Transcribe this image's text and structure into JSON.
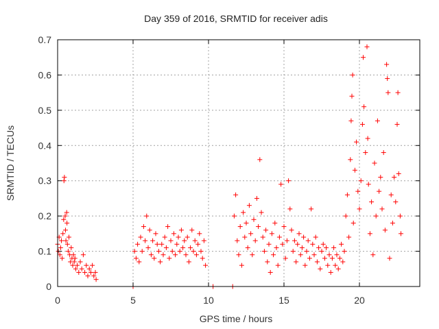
{
  "chart_data": {
    "type": "scatter",
    "title": "Day 359 of 2016, SRMTID for receiver adis",
    "xlabel": "GPS time / hours",
    "ylabel": "SRMTID / TECUs",
    "xlim": [
      0,
      24
    ],
    "ylim": [
      0,
      0.7
    ],
    "xticks": [
      0,
      5,
      10,
      15,
      20
    ],
    "xtick_labels": [
      "0",
      "5",
      "10",
      "15",
      "20"
    ],
    "yticks": [
      0,
      0.1,
      0.2,
      0.3,
      0.4,
      0.5,
      0.6,
      0.7
    ],
    "ytick_labels": [
      "0",
      "0.1",
      "0.2",
      "0.3",
      "0.4",
      "0.5",
      "0.6",
      "0.7"
    ],
    "grid": true,
    "marker": "plus",
    "series": [
      {
        "name": "SRMTID",
        "color": "#ff0000",
        "points": [
          [
            0.0,
            0.12
          ],
          [
            0.05,
            0.1
          ],
          [
            0.1,
            0.14
          ],
          [
            0.15,
            0.09
          ],
          [
            0.2,
            0.11
          ],
          [
            0.25,
            0.13
          ],
          [
            0.3,
            0.08
          ],
          [
            0.35,
            0.15
          ],
          [
            0.4,
            0.19
          ],
          [
            0.42,
            0.3
          ],
          [
            0.45,
            0.31
          ],
          [
            0.5,
            0.2
          ],
          [
            0.52,
            0.16
          ],
          [
            0.55,
            0.13
          ],
          [
            0.6,
            0.21
          ],
          [
            0.62,
            0.18
          ],
          [
            0.65,
            0.12
          ],
          [
            0.7,
            0.1
          ],
          [
            0.75,
            0.14
          ],
          [
            0.8,
            0.09
          ],
          [
            0.85,
            0.07
          ],
          [
            0.9,
            0.11
          ],
          [
            0.95,
            0.08
          ],
          [
            1.0,
            0.06
          ],
          [
            1.05,
            0.09
          ],
          [
            1.1,
            0.07
          ],
          [
            1.15,
            0.08
          ],
          [
            1.2,
            0.05
          ],
          [
            1.3,
            0.06
          ],
          [
            1.4,
            0.04
          ],
          [
            1.5,
            0.07
          ],
          [
            1.6,
            0.05
          ],
          [
            1.7,
            0.09
          ],
          [
            1.8,
            0.04
          ],
          [
            1.9,
            0.06
          ],
          [
            2.0,
            0.03
          ],
          [
            2.1,
            0.05
          ],
          [
            2.2,
            0.04
          ],
          [
            2.3,
            0.06
          ],
          [
            2.4,
            0.03
          ],
          [
            2.5,
            0.04
          ],
          [
            2.55,
            0.02
          ],
          [
            5.0,
            0.0
          ],
          [
            5.1,
            0.1
          ],
          [
            5.2,
            0.08
          ],
          [
            5.3,
            0.12
          ],
          [
            5.4,
            0.07
          ],
          [
            5.5,
            0.14
          ],
          [
            5.6,
            0.1
          ],
          [
            5.7,
            0.17
          ],
          [
            5.8,
            0.13
          ],
          [
            5.9,
            0.2
          ],
          [
            6.0,
            0.11
          ],
          [
            6.1,
            0.16
          ],
          [
            6.2,
            0.09
          ],
          [
            6.3,
            0.13
          ],
          [
            6.4,
            0.08
          ],
          [
            6.5,
            0.15
          ],
          [
            6.6,
            0.12
          ],
          [
            6.7,
            0.1
          ],
          [
            6.8,
            0.07
          ],
          [
            6.9,
            0.12
          ],
          [
            7.0,
            0.09
          ],
          [
            7.1,
            0.14
          ],
          [
            7.2,
            0.11
          ],
          [
            7.3,
            0.17
          ],
          [
            7.4,
            0.08
          ],
          [
            7.5,
            0.13
          ],
          [
            7.6,
            0.1
          ],
          [
            7.7,
            0.15
          ],
          [
            7.8,
            0.09
          ],
          [
            7.9,
            0.12
          ],
          [
            8.0,
            0.14
          ],
          [
            8.1,
            0.1
          ],
          [
            8.2,
            0.16
          ],
          [
            8.3,
            0.11
          ],
          [
            8.4,
            0.13
          ],
          [
            8.5,
            0.09
          ],
          [
            8.6,
            0.14
          ],
          [
            8.7,
            0.07
          ],
          [
            8.8,
            0.11
          ],
          [
            8.9,
            0.16
          ],
          [
            9.0,
            0.1
          ],
          [
            9.1,
            0.13
          ],
          [
            9.2,
            0.09
          ],
          [
            9.3,
            0.12
          ],
          [
            9.4,
            0.15
          ],
          [
            9.5,
            0.1
          ],
          [
            9.6,
            0.08
          ],
          [
            9.7,
            0.13
          ],
          [
            9.8,
            0.06
          ],
          [
            10.3,
            0.0
          ],
          [
            11.6,
            0.0
          ],
          [
            11.7,
            0.2
          ],
          [
            11.8,
            0.26
          ],
          [
            11.9,
            0.13
          ],
          [
            12.0,
            0.09
          ],
          [
            12.1,
            0.17
          ],
          [
            12.2,
            0.06
          ],
          [
            12.3,
            0.21
          ],
          [
            12.4,
            0.14
          ],
          [
            12.5,
            0.18
          ],
          [
            12.6,
            0.11
          ],
          [
            12.7,
            0.23
          ],
          [
            12.8,
            0.15
          ],
          [
            12.9,
            0.09
          ],
          [
            13.0,
            0.19
          ],
          [
            13.1,
            0.13
          ],
          [
            13.2,
            0.25
          ],
          [
            13.3,
            0.17
          ],
          [
            13.4,
            0.36
          ],
          [
            13.5,
            0.21
          ],
          [
            13.6,
            0.14
          ],
          [
            13.7,
            0.1
          ],
          [
            13.8,
            0.16
          ],
          [
            13.9,
            0.07
          ],
          [
            14.0,
            0.12
          ],
          [
            14.1,
            0.04
          ],
          [
            14.2,
            0.15
          ],
          [
            14.3,
            0.09
          ],
          [
            14.4,
            0.18
          ],
          [
            14.5,
            0.11
          ],
          [
            14.6,
            0.06
          ],
          [
            14.7,
            0.14
          ],
          [
            14.8,
            0.29
          ],
          [
            14.9,
            0.12
          ],
          [
            15.0,
            0.17
          ],
          [
            15.1,
            0.08
          ],
          [
            15.2,
            0.13
          ],
          [
            15.3,
            0.3
          ],
          [
            15.4,
            0.22
          ],
          [
            15.5,
            0.16
          ],
          [
            15.6,
            0.1
          ],
          [
            15.7,
            0.13
          ],
          [
            15.8,
            0.07
          ],
          [
            15.9,
            0.12
          ],
          [
            16.0,
            0.15
          ],
          [
            16.1,
            0.09
          ],
          [
            16.2,
            0.11
          ],
          [
            16.3,
            0.14
          ],
          [
            16.4,
            0.06
          ],
          [
            16.5,
            0.1
          ],
          [
            16.6,
            0.13
          ],
          [
            16.7,
            0.08
          ],
          [
            16.8,
            0.22
          ],
          [
            16.9,
            0.12
          ],
          [
            17.0,
            0.09
          ],
          [
            17.1,
            0.14
          ],
          [
            17.2,
            0.07
          ],
          [
            17.3,
            0.11
          ],
          [
            17.4,
            0.05
          ],
          [
            17.5,
            0.1
          ],
          [
            17.6,
            0.12
          ],
          [
            17.7,
            0.08
          ],
          [
            17.8,
            0.11
          ],
          [
            17.9,
            0.06
          ],
          [
            18.0,
            0.09
          ],
          [
            18.1,
            0.04
          ],
          [
            18.2,
            0.08
          ],
          [
            18.3,
            0.11
          ],
          [
            18.4,
            0.06
          ],
          [
            18.5,
            0.09
          ],
          [
            18.6,
            0.05
          ],
          [
            18.7,
            0.08
          ],
          [
            18.8,
            0.12
          ],
          [
            18.9,
            0.07
          ],
          [
            19.0,
            0.1
          ],
          [
            19.1,
            0.2
          ],
          [
            19.2,
            0.26
          ],
          [
            19.3,
            0.14
          ],
          [
            19.4,
            0.36
          ],
          [
            19.45,
            0.47
          ],
          [
            19.5,
            0.54
          ],
          [
            19.55,
            0.6
          ],
          [
            19.6,
            0.18
          ],
          [
            19.7,
            0.33
          ],
          [
            19.8,
            0.41
          ],
          [
            19.9,
            0.27
          ],
          [
            20.0,
            0.22
          ],
          [
            20.1,
            0.3
          ],
          [
            20.2,
            0.46
          ],
          [
            20.25,
            0.65
          ],
          [
            20.3,
            0.51
          ],
          [
            20.4,
            0.38
          ],
          [
            20.5,
            0.68
          ],
          [
            20.55,
            0.42
          ],
          [
            20.6,
            0.29
          ],
          [
            20.7,
            0.15
          ],
          [
            20.8,
            0.24
          ],
          [
            20.9,
            0.09
          ],
          [
            21.0,
            0.35
          ],
          [
            21.1,
            0.2
          ],
          [
            21.2,
            0.47
          ],
          [
            21.3,
            0.27
          ],
          [
            21.4,
            0.31
          ],
          [
            21.5,
            0.22
          ],
          [
            21.6,
            0.38
          ],
          [
            21.7,
            0.16
          ],
          [
            21.8,
            0.63
          ],
          [
            21.85,
            0.59
          ],
          [
            21.9,
            0.55
          ],
          [
            22.0,
            0.08
          ],
          [
            22.1,
            0.26
          ],
          [
            22.2,
            0.18
          ],
          [
            22.3,
            0.31
          ],
          [
            22.4,
            0.24
          ],
          [
            22.5,
            0.46
          ],
          [
            22.55,
            0.55
          ],
          [
            22.6,
            0.32
          ],
          [
            22.7,
            0.2
          ],
          [
            22.75,
            0.15
          ]
        ]
      }
    ]
  }
}
